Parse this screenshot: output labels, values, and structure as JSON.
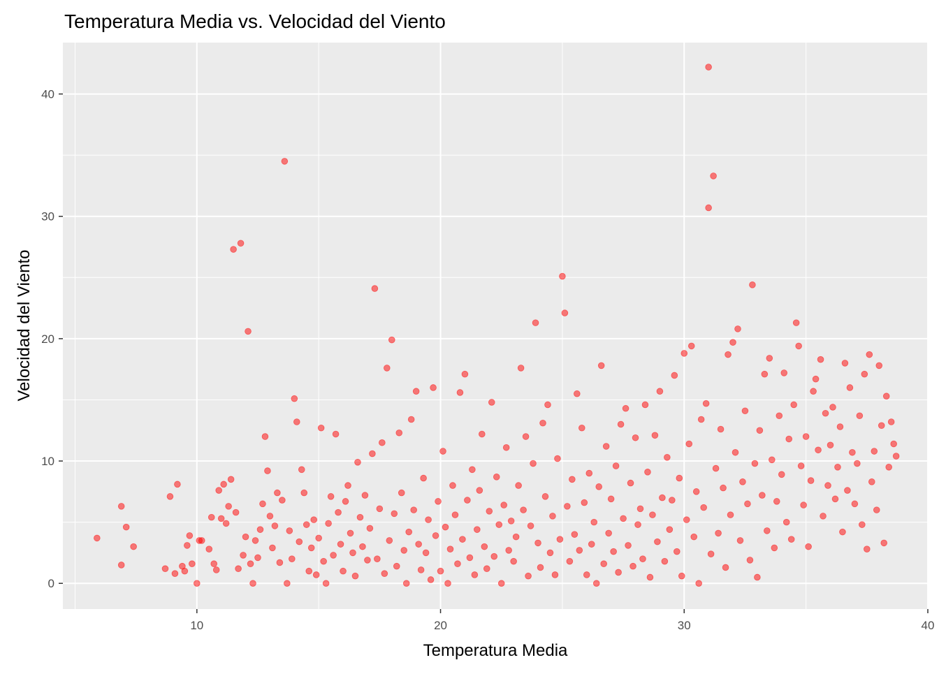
{
  "chart_data": {
    "type": "scatter",
    "title": "Temperatura Media vs. Velocidad del Viento",
    "xlabel": "Temperatura Media",
    "ylabel": "Velocidad del Viento",
    "xlim": [
      4.5,
      40.0
    ],
    "ylim": [
      -2.1,
      44.2
    ],
    "x_ticks": [
      10,
      20,
      30,
      40
    ],
    "y_ticks": [
      0,
      10,
      20,
      30,
      40
    ],
    "x_tick_labels": [
      "10",
      "20",
      "30",
      "40"
    ],
    "y_tick_labels": [
      "0",
      "10",
      "20",
      "30",
      "40"
    ],
    "grid": true,
    "legend": "none",
    "colors": {
      "panel": "#EBEBEB",
      "grid_major": "#FFFFFF",
      "point": "#FF0000"
    },
    "point_opacity": 0.5,
    "series": [
      {
        "points": [
          [
            5.9,
            3.7
          ],
          [
            6.9,
            1.5
          ],
          [
            6.9,
            6.3
          ],
          [
            7.1,
            4.6
          ],
          [
            7.4,
            3.0
          ],
          [
            8.7,
            1.2
          ],
          [
            8.9,
            7.1
          ],
          [
            9.1,
            0.8
          ],
          [
            9.2,
            8.1
          ],
          [
            9.4,
            1.4
          ],
          [
            9.5,
            1.0
          ],
          [
            9.6,
            3.1
          ],
          [
            9.7,
            3.9
          ],
          [
            9.8,
            1.6
          ],
          [
            10.0,
            0.0
          ],
          [
            10.1,
            3.5
          ],
          [
            10.2,
            3.5
          ],
          [
            10.5,
            2.8
          ],
          [
            10.6,
            5.4
          ],
          [
            10.7,
            1.6
          ],
          [
            10.8,
            1.1
          ],
          [
            10.9,
            7.6
          ],
          [
            11.0,
            5.3
          ],
          [
            11.1,
            8.1
          ],
          [
            11.2,
            4.9
          ],
          [
            11.3,
            6.3
          ],
          [
            11.4,
            8.5
          ],
          [
            11.5,
            27.3
          ],
          [
            11.6,
            5.8
          ],
          [
            11.7,
            1.2
          ],
          [
            11.8,
            27.8
          ],
          [
            11.9,
            2.3
          ],
          [
            12.0,
            3.8
          ],
          [
            12.1,
            20.6
          ],
          [
            12.2,
            1.6
          ],
          [
            12.3,
            0.0
          ],
          [
            12.4,
            3.5
          ],
          [
            12.5,
            2.1
          ],
          [
            12.6,
            4.4
          ],
          [
            12.7,
            6.5
          ],
          [
            12.8,
            12.0
          ],
          [
            12.9,
            9.2
          ],
          [
            13.0,
            5.5
          ],
          [
            13.1,
            2.9
          ],
          [
            13.2,
            4.7
          ],
          [
            13.3,
            7.4
          ],
          [
            13.4,
            1.7
          ],
          [
            13.5,
            6.8
          ],
          [
            13.6,
            34.5
          ],
          [
            13.7,
            0.0
          ],
          [
            13.8,
            4.3
          ],
          [
            13.9,
            2.0
          ],
          [
            14.0,
            15.1
          ],
          [
            14.1,
            13.2
          ],
          [
            14.2,
            3.4
          ],
          [
            14.3,
            9.3
          ],
          [
            14.4,
            7.4
          ],
          [
            14.5,
            4.8
          ],
          [
            14.6,
            1.0
          ],
          [
            14.7,
            2.9
          ],
          [
            14.8,
            5.2
          ],
          [
            14.9,
            0.7
          ],
          [
            15.0,
            3.7
          ],
          [
            15.1,
            12.7
          ],
          [
            15.2,
            1.8
          ],
          [
            15.3,
            0.0
          ],
          [
            15.4,
            4.9
          ],
          [
            15.5,
            7.1
          ],
          [
            15.6,
            2.3
          ],
          [
            15.7,
            12.2
          ],
          [
            15.8,
            5.8
          ],
          [
            15.9,
            3.2
          ],
          [
            16.0,
            1.0
          ],
          [
            16.1,
            6.7
          ],
          [
            16.2,
            8.0
          ],
          [
            16.3,
            4.1
          ],
          [
            16.4,
            2.5
          ],
          [
            16.5,
            0.6
          ],
          [
            16.6,
            9.9
          ],
          [
            16.7,
            5.4
          ],
          [
            16.8,
            3.0
          ],
          [
            16.9,
            7.2
          ],
          [
            17.0,
            1.9
          ],
          [
            17.1,
            4.5
          ],
          [
            17.2,
            10.6
          ],
          [
            17.3,
            24.1
          ],
          [
            17.4,
            2.0
          ],
          [
            17.5,
            6.1
          ],
          [
            17.6,
            11.5
          ],
          [
            17.7,
            0.8
          ],
          [
            17.8,
            17.6
          ],
          [
            17.9,
            3.5
          ],
          [
            18.0,
            19.9
          ],
          [
            18.1,
            5.7
          ],
          [
            18.2,
            1.4
          ],
          [
            18.3,
            12.3
          ],
          [
            18.4,
            7.4
          ],
          [
            18.5,
            2.7
          ],
          [
            18.6,
            0.0
          ],
          [
            18.7,
            4.2
          ],
          [
            18.8,
            13.4
          ],
          [
            18.9,
            6.0
          ],
          [
            19.0,
            15.7
          ],
          [
            19.1,
            3.2
          ],
          [
            19.2,
            1.1
          ],
          [
            19.3,
            8.6
          ],
          [
            19.4,
            2.5
          ],
          [
            19.5,
            5.2
          ],
          [
            19.6,
            0.3
          ],
          [
            19.7,
            16.0
          ],
          [
            19.8,
            3.9
          ],
          [
            19.9,
            6.7
          ],
          [
            20.0,
            1.0
          ],
          [
            20.1,
            10.8
          ],
          [
            20.2,
            4.6
          ],
          [
            20.3,
            0.0
          ],
          [
            20.4,
            2.8
          ],
          [
            20.5,
            8.0
          ],
          [
            20.6,
            5.6
          ],
          [
            20.7,
            1.6
          ],
          [
            20.8,
            15.6
          ],
          [
            20.9,
            3.6
          ],
          [
            21.0,
            17.1
          ],
          [
            21.1,
            6.8
          ],
          [
            21.2,
            2.1
          ],
          [
            21.3,
            9.3
          ],
          [
            21.4,
            0.7
          ],
          [
            21.5,
            4.4
          ],
          [
            21.6,
            7.6
          ],
          [
            21.7,
            12.2
          ],
          [
            21.8,
            3.0
          ],
          [
            21.9,
            1.2
          ],
          [
            22.0,
            5.9
          ],
          [
            22.1,
            14.8
          ],
          [
            22.2,
            2.2
          ],
          [
            22.3,
            8.7
          ],
          [
            22.4,
            4.8
          ],
          [
            22.5,
            0.0
          ],
          [
            22.6,
            6.4
          ],
          [
            22.7,
            11.1
          ],
          [
            22.8,
            2.7
          ],
          [
            22.9,
            5.1
          ],
          [
            23.0,
            1.8
          ],
          [
            23.1,
            3.8
          ],
          [
            23.2,
            8.0
          ],
          [
            23.3,
            17.6
          ],
          [
            23.4,
            6.0
          ],
          [
            23.5,
            12.0
          ],
          [
            23.6,
            0.6
          ],
          [
            23.7,
            4.7
          ],
          [
            23.8,
            9.8
          ],
          [
            23.9,
            21.3
          ],
          [
            24.0,
            3.3
          ],
          [
            24.1,
            1.3
          ],
          [
            24.2,
            13.1
          ],
          [
            24.3,
            7.1
          ],
          [
            24.4,
            14.6
          ],
          [
            24.5,
            2.5
          ],
          [
            24.6,
            5.5
          ],
          [
            24.7,
            0.7
          ],
          [
            24.8,
            10.2
          ],
          [
            24.9,
            3.6
          ],
          [
            25.0,
            25.1
          ],
          [
            25.1,
            22.1
          ],
          [
            25.2,
            6.3
          ],
          [
            25.3,
            1.8
          ],
          [
            25.4,
            8.5
          ],
          [
            25.5,
            4.0
          ],
          [
            25.6,
            15.5
          ],
          [
            25.7,
            2.7
          ],
          [
            25.8,
            12.7
          ],
          [
            25.9,
            6.6
          ],
          [
            26.0,
            0.7
          ],
          [
            26.1,
            9.0
          ],
          [
            26.2,
            3.2
          ],
          [
            26.3,
            5.0
          ],
          [
            26.4,
            0.0
          ],
          [
            26.5,
            7.9
          ],
          [
            26.6,
            17.8
          ],
          [
            26.7,
            1.6
          ],
          [
            26.8,
            11.2
          ],
          [
            26.9,
            4.1
          ],
          [
            27.0,
            6.9
          ],
          [
            27.1,
            2.6
          ],
          [
            27.2,
            9.6
          ],
          [
            27.3,
            0.9
          ],
          [
            27.4,
            13.0
          ],
          [
            27.5,
            5.3
          ],
          [
            27.6,
            14.3
          ],
          [
            27.7,
            3.1
          ],
          [
            27.8,
            8.2
          ],
          [
            27.9,
            1.4
          ],
          [
            28.0,
            11.9
          ],
          [
            28.1,
            4.8
          ],
          [
            28.2,
            6.1
          ],
          [
            28.3,
            2.0
          ],
          [
            28.4,
            14.6
          ],
          [
            28.5,
            9.1
          ],
          [
            28.6,
            0.5
          ],
          [
            28.7,
            5.6
          ],
          [
            28.8,
            12.1
          ],
          [
            28.9,
            3.4
          ],
          [
            29.0,
            15.7
          ],
          [
            29.1,
            7.0
          ],
          [
            29.2,
            1.8
          ],
          [
            29.3,
            10.3
          ],
          [
            29.4,
            4.4
          ],
          [
            29.5,
            6.8
          ],
          [
            29.6,
            17.0
          ],
          [
            29.7,
            2.6
          ],
          [
            29.8,
            8.6
          ],
          [
            29.9,
            0.6
          ],
          [
            30.0,
            18.8
          ],
          [
            30.1,
            5.2
          ],
          [
            30.2,
            11.4
          ],
          [
            30.3,
            19.4
          ],
          [
            30.4,
            3.8
          ],
          [
            30.5,
            7.5
          ],
          [
            30.6,
            0.0
          ],
          [
            30.7,
            13.4
          ],
          [
            30.8,
            6.2
          ],
          [
            30.9,
            14.7
          ],
          [
            31.0,
            42.2
          ],
          [
            31.0,
            30.7
          ],
          [
            31.1,
            2.4
          ],
          [
            31.2,
            33.3
          ],
          [
            31.3,
            9.4
          ],
          [
            31.4,
            4.1
          ],
          [
            31.5,
            12.6
          ],
          [
            31.6,
            7.8
          ],
          [
            31.7,
            1.3
          ],
          [
            31.8,
            18.7
          ],
          [
            31.9,
            5.6
          ],
          [
            32.0,
            19.7
          ],
          [
            32.1,
            10.7
          ],
          [
            32.2,
            20.8
          ],
          [
            32.3,
            3.5
          ],
          [
            32.4,
            8.3
          ],
          [
            32.5,
            14.1
          ],
          [
            32.6,
            6.5
          ],
          [
            32.7,
            1.9
          ],
          [
            32.8,
            24.4
          ],
          [
            32.9,
            9.8
          ],
          [
            33.0,
            0.5
          ],
          [
            33.1,
            12.5
          ],
          [
            33.2,
            7.2
          ],
          [
            33.3,
            17.1
          ],
          [
            33.4,
            4.3
          ],
          [
            33.5,
            18.4
          ],
          [
            33.6,
            10.1
          ],
          [
            33.7,
            2.9
          ],
          [
            33.8,
            6.7
          ],
          [
            33.9,
            13.7
          ],
          [
            34.0,
            8.9
          ],
          [
            34.1,
            17.2
          ],
          [
            34.2,
            5.0
          ],
          [
            34.3,
            11.8
          ],
          [
            34.4,
            3.6
          ],
          [
            34.5,
            14.6
          ],
          [
            34.6,
            21.3
          ],
          [
            34.7,
            19.4
          ],
          [
            34.8,
            9.6
          ],
          [
            34.9,
            6.4
          ],
          [
            35.0,
            12.0
          ],
          [
            35.1,
            3.0
          ],
          [
            35.2,
            8.4
          ],
          [
            35.3,
            15.7
          ],
          [
            35.4,
            16.7
          ],
          [
            35.5,
            10.9
          ],
          [
            35.6,
            18.3
          ],
          [
            35.7,
            5.5
          ],
          [
            35.8,
            13.9
          ],
          [
            35.9,
            8.0
          ],
          [
            36.0,
            11.3
          ],
          [
            36.1,
            14.4
          ],
          [
            36.2,
            6.9
          ],
          [
            36.3,
            9.5
          ],
          [
            36.4,
            12.8
          ],
          [
            36.5,
            4.2
          ],
          [
            36.6,
            18.0
          ],
          [
            36.7,
            7.6
          ],
          [
            36.8,
            16.0
          ],
          [
            36.9,
            10.7
          ],
          [
            37.0,
            6.5
          ],
          [
            37.1,
            9.8
          ],
          [
            37.2,
            13.7
          ],
          [
            37.3,
            4.8
          ],
          [
            37.4,
            17.1
          ],
          [
            37.5,
            2.8
          ],
          [
            37.6,
            18.7
          ],
          [
            37.7,
            8.3
          ],
          [
            37.8,
            10.8
          ],
          [
            37.9,
            6.0
          ],
          [
            38.0,
            17.8
          ],
          [
            38.1,
            12.9
          ],
          [
            38.2,
            3.3
          ],
          [
            38.3,
            15.3
          ],
          [
            38.4,
            9.5
          ],
          [
            38.5,
            13.2
          ],
          [
            38.6,
            11.4
          ],
          [
            38.7,
            10.4
          ]
        ]
      }
    ]
  }
}
